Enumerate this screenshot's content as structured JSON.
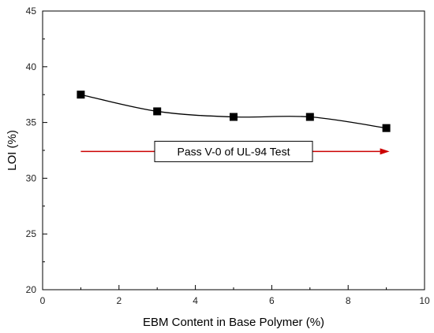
{
  "chart_data": {
    "type": "line",
    "xlabel": "EBM Content in Base Polymer (%)",
    "ylabel": "LOI (%)",
    "xlim": [
      0,
      10
    ],
    "ylim": [
      20,
      45
    ],
    "xticks": [
      0,
      2,
      4,
      6,
      8,
      10
    ],
    "yticks": [
      20,
      25,
      30,
      35,
      40,
      45
    ],
    "grid": false,
    "series": [
      {
        "x": [
          1,
          3,
          5,
          7,
          9
        ],
        "y": [
          37.5,
          36.0,
          35.5,
          35.5,
          34.5
        ],
        "marker": "square",
        "line": "smooth",
        "color": "#000000"
      }
    ],
    "annotation": {
      "text": "Pass V-0 of UL-94 Test",
      "arrow_color": "#cc0000",
      "arrow_from_x": 1,
      "arrow_to_x": 9,
      "arrow_y": 32.4
    }
  }
}
